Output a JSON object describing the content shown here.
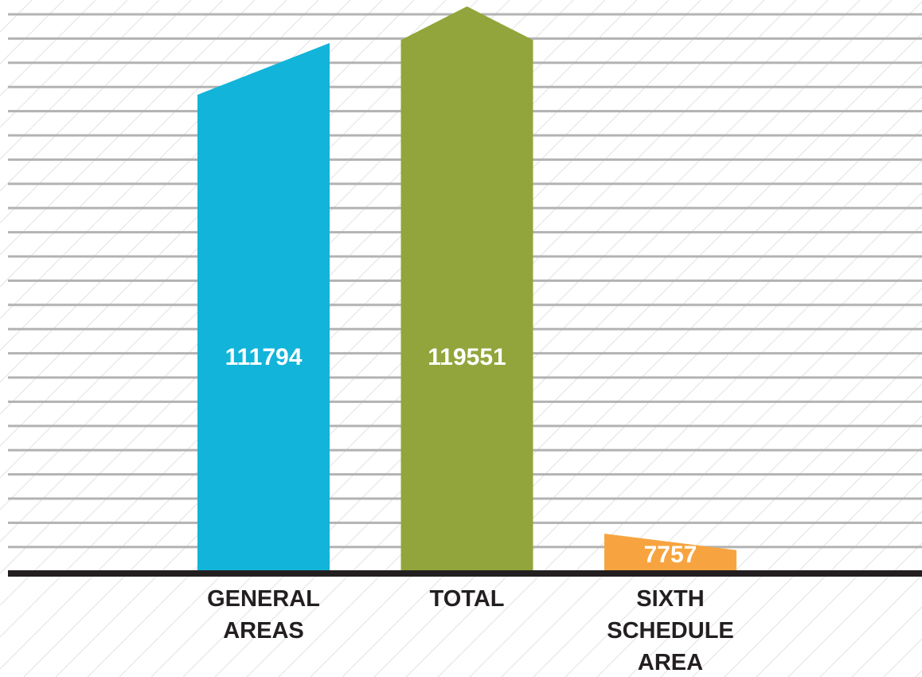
{
  "chart_data": {
    "type": "bar",
    "categories": [
      "GENERAL AREAS",
      "TOTAL",
      "SIXTH SCHEDULE AREA"
    ],
    "values": [
      111794,
      119551,
      7757
    ],
    "colors": [
      "#12b4d9",
      "#92a53c",
      "#f7a440"
    ]
  }
}
